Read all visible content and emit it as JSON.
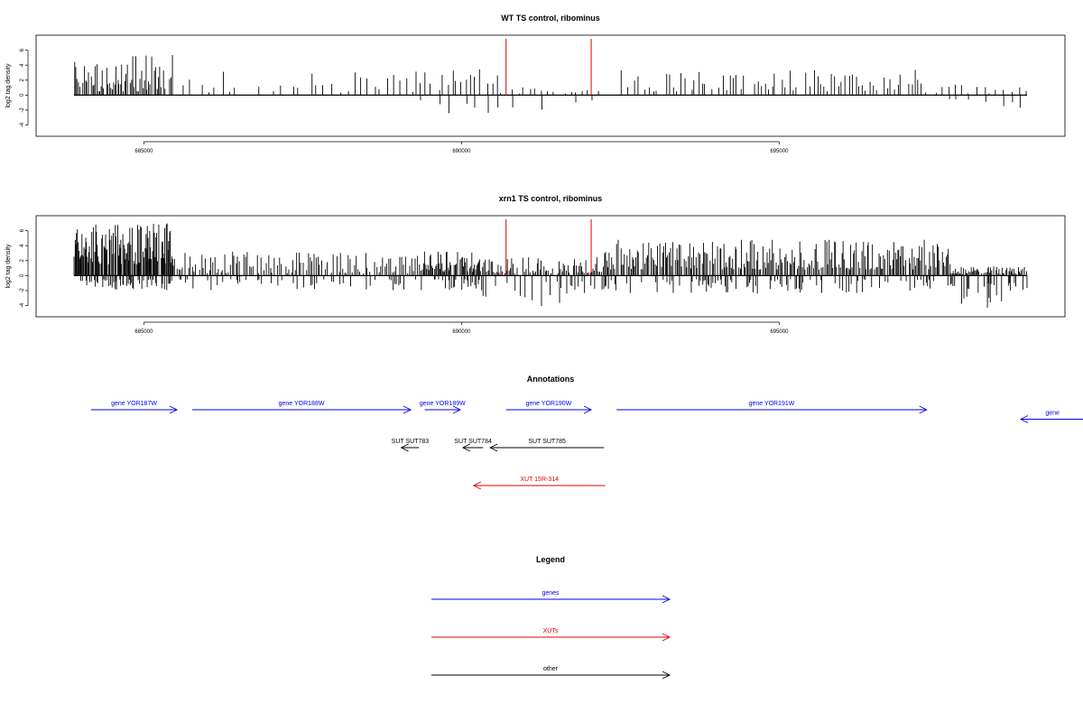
{
  "chart_data": [
    {
      "type": "bar",
      "title": "WT TS control, ribominus",
      "ylabel": "log2 tag density",
      "xlabel": "",
      "xlim": [
        683900,
        698900
      ],
      "ylim": [
        -5.5,
        8
      ],
      "yticks": [
        -4,
        -2,
        0,
        2,
        4,
        6
      ],
      "xticks": [
        685000,
        690000,
        695000
      ],
      "markers": [
        690700,
        692040
      ],
      "segments": [
        {
          "x0": 683900,
          "x1": 685450,
          "step": 22,
          "pos": [
            0.5,
            5.5
          ],
          "neg": null
        },
        {
          "x0": 685600,
          "x1": 689200,
          "step": 100,
          "pos": [
            0.3,
            3.2
          ],
          "neg": null
        },
        {
          "x0": 689200,
          "x1": 690600,
          "step": 70,
          "pos": [
            0.4,
            3.5
          ],
          "neg": [
            -0.5,
            -2.8
          ]
        },
        {
          "x0": 690600,
          "x1": 692200,
          "step": 90,
          "pos": [
            0.2,
            1.2
          ],
          "neg": [
            -0.5,
            -2.5
          ]
        },
        {
          "x0": 692500,
          "x1": 697300,
          "step": 55,
          "pos": [
            0.5,
            3.6
          ],
          "neg": null
        },
        {
          "x0": 697300,
          "x1": 698900,
          "step": 110,
          "pos": [
            0.2,
            1.5
          ],
          "neg": [
            -0.5,
            -2.2
          ]
        }
      ]
    },
    {
      "type": "bar",
      "title": "xrn1 TS control, ribominus",
      "ylabel": "log2 tag density",
      "xlabel": "",
      "xlim": [
        683900,
        698900
      ],
      "ylim": [
        -5.5,
        8
      ],
      "yticks": [
        -4,
        -2,
        0,
        2,
        4,
        6
      ],
      "xticks": [
        685000,
        690000,
        695000
      ],
      "markers": [
        690700,
        692040
      ],
      "segments": [
        {
          "x0": 683900,
          "x1": 685450,
          "step": 12,
          "pos": [
            1.5,
            7.0
          ],
          "neg": [
            -0.5,
            -2.0
          ]
        },
        {
          "x0": 685450,
          "x1": 689400,
          "step": 30,
          "pos": [
            0.3,
            3.2
          ],
          "neg": [
            -0.5,
            -2.0
          ]
        },
        {
          "x0": 689400,
          "x1": 690300,
          "step": 16,
          "pos": [
            0.5,
            3.4
          ],
          "neg": [
            -0.5,
            -2.0
          ]
        },
        {
          "x0": 690300,
          "x1": 692200,
          "step": 22,
          "pos": [
            0.3,
            2.5
          ],
          "neg": [
            -0.8,
            -4.5
          ]
        },
        {
          "x0": 692200,
          "x1": 697700,
          "step": 20,
          "pos": [
            0.8,
            4.8
          ],
          "neg": [
            -0.5,
            -2.4
          ]
        },
        {
          "x0": 697700,
          "x1": 698900,
          "step": 16,
          "pos": [
            0.2,
            1.2
          ],
          "neg": [
            -1.0,
            -4.5
          ]
        }
      ]
    }
  ],
  "annotations": {
    "title": "Annotations",
    "items": [
      {
        "label": "gene YOR187W",
        "x0": 684170,
        "x1": 685520,
        "row": 0,
        "dir": "right",
        "kind": "gene"
      },
      {
        "label": "gene YOR188W",
        "x0": 685760,
        "x1": 689200,
        "row": 0,
        "dir": "right",
        "kind": "gene"
      },
      {
        "label": "gene YOR189W",
        "x0": 689420,
        "x1": 689980,
        "row": 0,
        "dir": "right",
        "kind": "gene"
      },
      {
        "label": "gene YOR190W",
        "x0": 690700,
        "x1": 692040,
        "row": 0,
        "dir": "right",
        "kind": "gene"
      },
      {
        "label": "gene YOR191W",
        "x0": 692440,
        "x1": 697320,
        "row": 0,
        "dir": "right",
        "kind": "gene"
      },
      {
        "label": "gene",
        "x0": 698800,
        "x1": 699800,
        "row": 0.25,
        "dir": "left",
        "kind": "gene"
      },
      {
        "label": "SUT SUT783",
        "x0": 689050,
        "x1": 689330,
        "row": 1,
        "dir": "left",
        "kind": "other"
      },
      {
        "label": "SUT SUT784",
        "x0": 690020,
        "x1": 690340,
        "row": 1,
        "dir": "left",
        "kind": "other"
      },
      {
        "label": "SUT SUT785",
        "x0": 690450,
        "x1": 692240,
        "row": 1,
        "dir": "left",
        "kind": "other"
      },
      {
        "label": "XUT 15R-314",
        "x0": 690190,
        "x1": 692260,
        "row": 2,
        "dir": "left",
        "kind": "xut"
      }
    ]
  },
  "legend": {
    "title": "Legend",
    "items": [
      {
        "label": "genes",
        "kind": "gene"
      },
      {
        "label": "XUTs",
        "kind": "xut"
      },
      {
        "label": "other",
        "kind": "other"
      }
    ]
  },
  "colors": {
    "gene": "#0000ee",
    "xut": "#dd0000",
    "other": "#000000",
    "marker": "#dd0000",
    "bars": "#000000"
  }
}
